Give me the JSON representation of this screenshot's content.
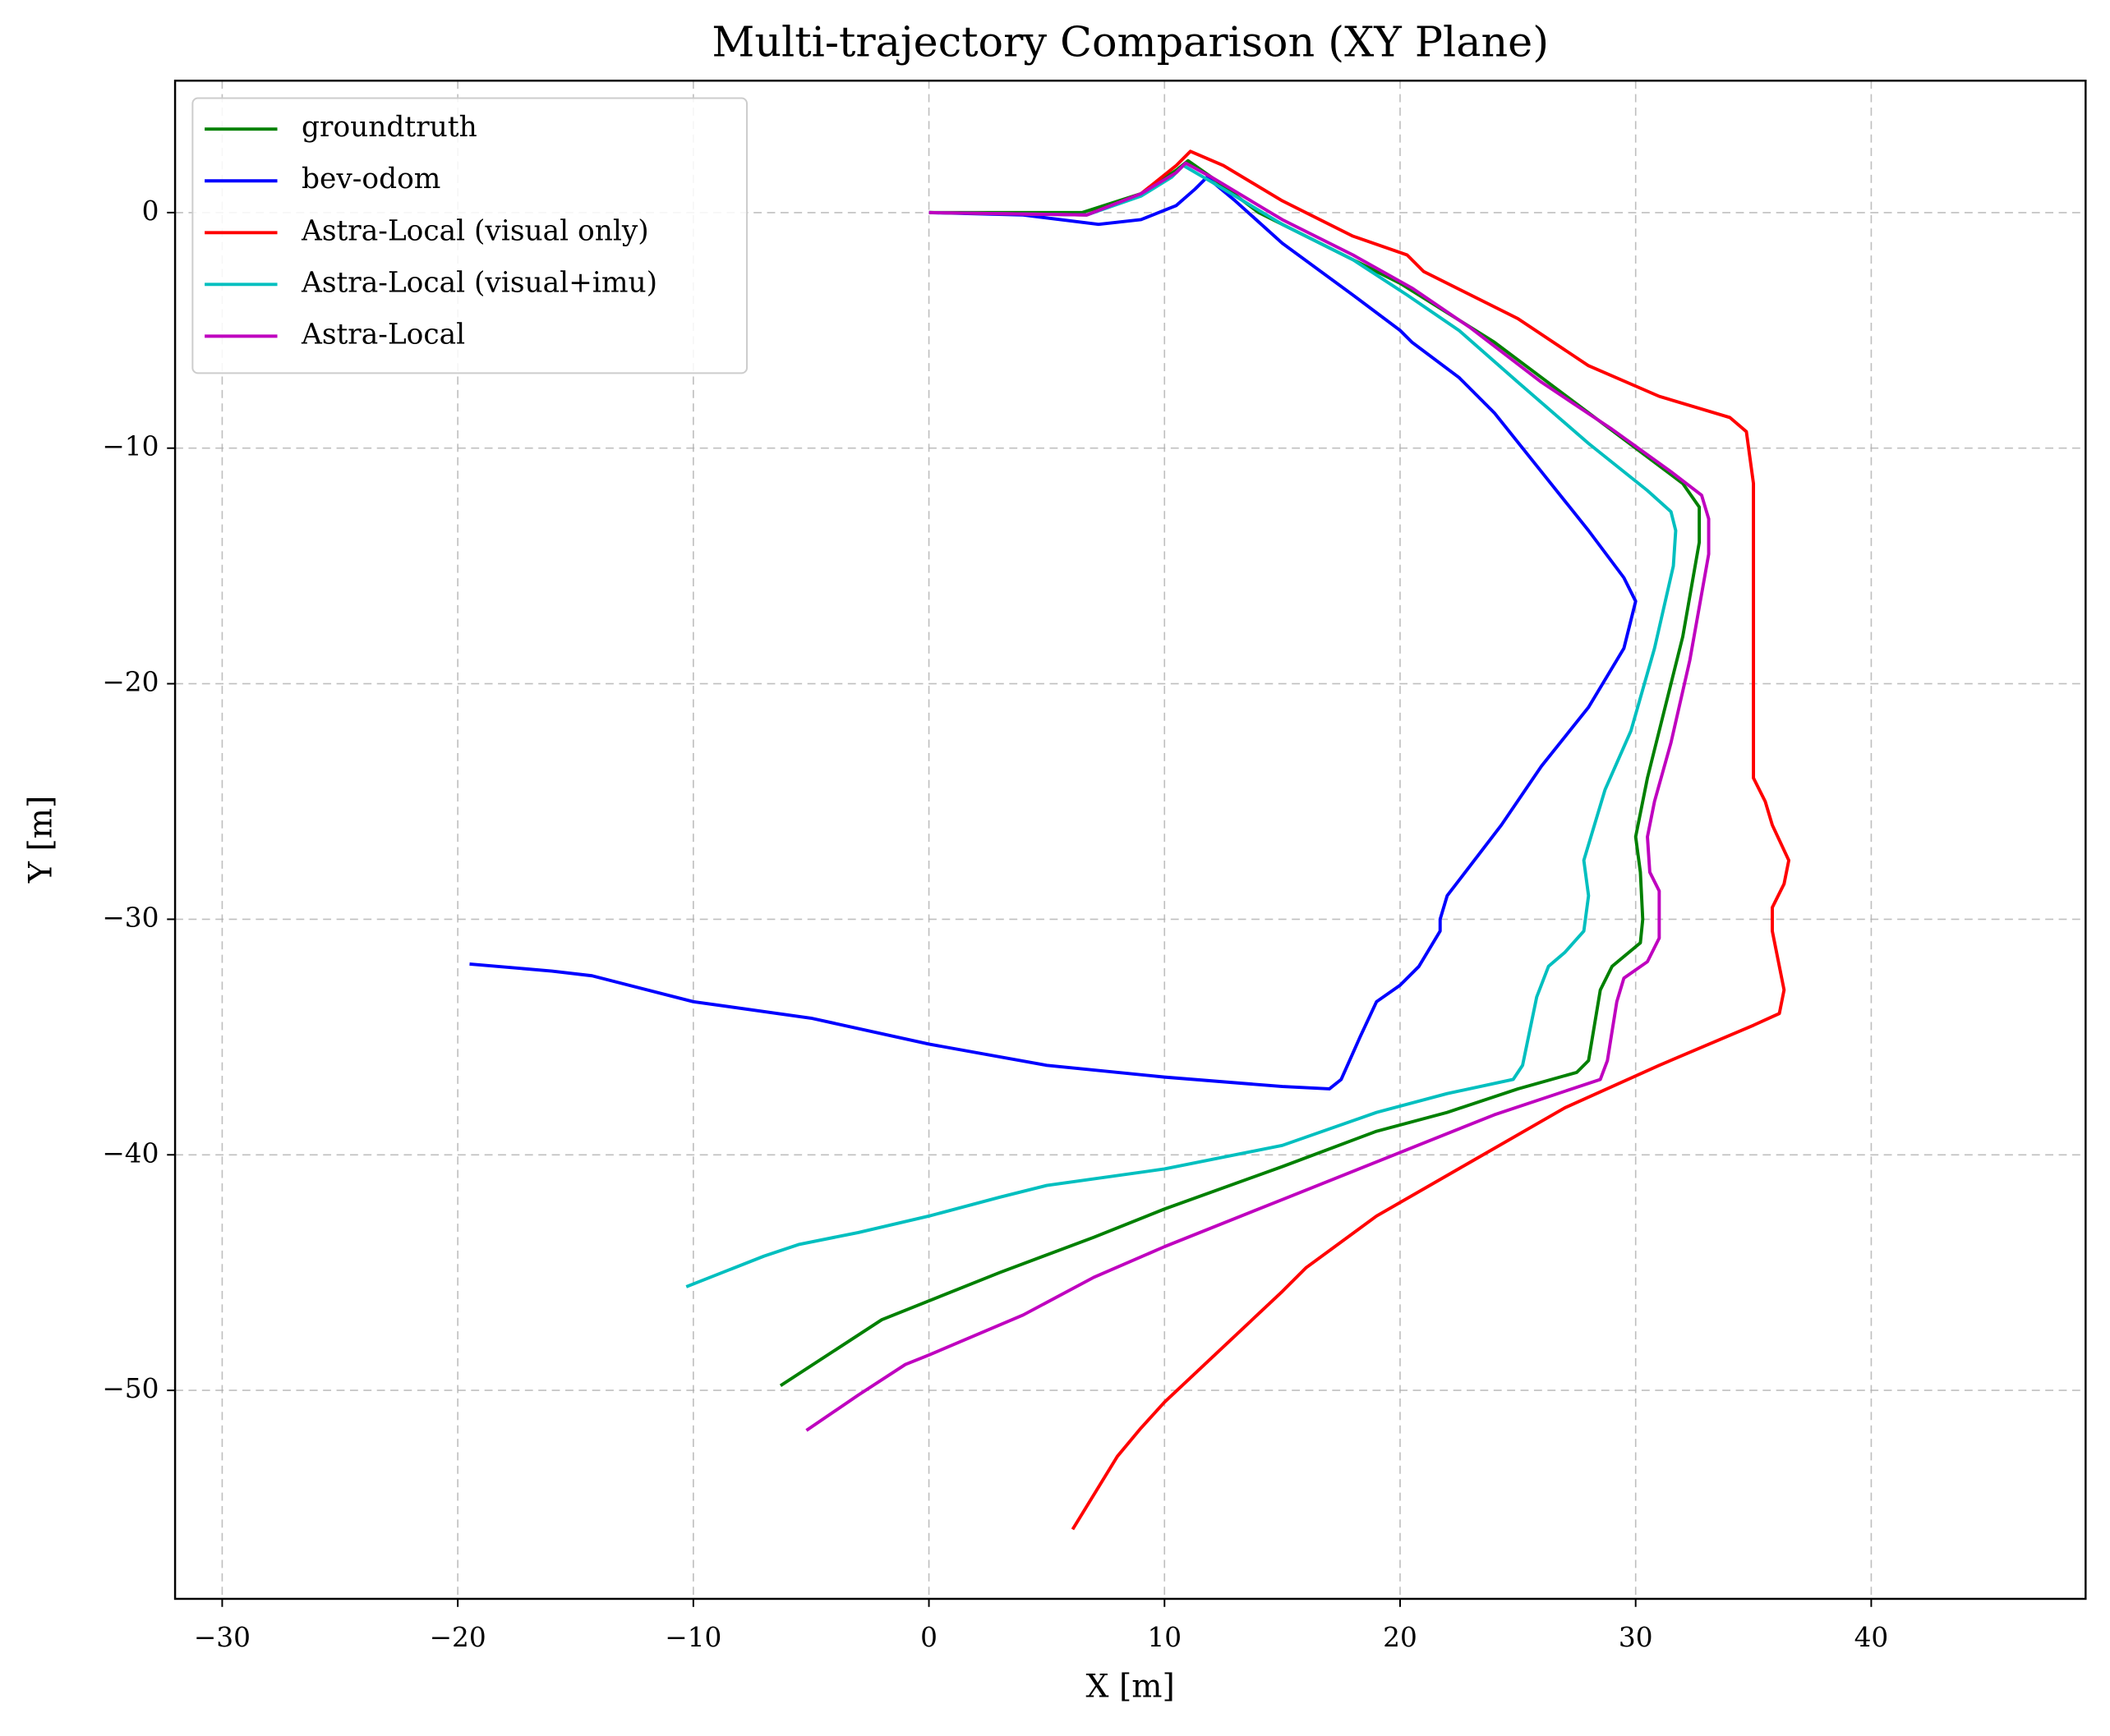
{
  "chart_data": {
    "type": "line",
    "title": "Multi-trajectory Comparison (XY Plane)",
    "x_label": "X [m]",
    "y_label": "Y [m]",
    "xlim": [
      -32,
      49.1
    ],
    "ylim": [
      -58.85,
      5.6
    ],
    "xticks": [
      {
        "value": -30,
        "label": "−30"
      },
      {
        "value": -20,
        "label": "−20"
      },
      {
        "value": -10,
        "label": "−10"
      },
      0,
      10,
      20,
      30,
      40
    ],
    "yticks": [
      {
        "value": -50,
        "label": "−50"
      },
      {
        "value": -40,
        "label": "−40"
      },
      {
        "value": -30,
        "label": "−30"
      },
      {
        "value": -20,
        "label": "−20"
      },
      {
        "value": -10,
        "label": "−10"
      },
      0
    ],
    "grid": true,
    "legend": "upper left",
    "series": [
      {
        "name": "groundtruth",
        "color": "#008000",
        "x": [
          0,
          6.5,
          9,
          10.5,
          11,
          12,
          14,
          17,
          20,
          24,
          28,
          32,
          32.7,
          32.7,
          32,
          31,
          30.5,
          30,
          30.2,
          30.3,
          30.2,
          29,
          28.5,
          28,
          27.5,
          25,
          22,
          19,
          15,
          10,
          7,
          3,
          -2,
          -6.3
        ],
        "values": [
          0,
          0,
          0.8,
          1.8,
          2.2,
          1.5,
          0,
          -1.5,
          -3,
          -5.5,
          -8.5,
          -11.5,
          -12.5,
          -14,
          -18,
          -22,
          -24,
          -26.5,
          -28,
          -30,
          -31,
          -32,
          -33,
          -36,
          -36.5,
          -37.2,
          -38.2,
          -39,
          -40.5,
          -42.3,
          -43.5,
          -45,
          -47,
          -49.8
        ]
      },
      {
        "name": "bev-odom",
        "color": "#0000ff",
        "x": [
          0,
          4,
          7.2,
          9,
          10.5,
          11.3,
          11.8,
          13,
          15,
          18,
          20,
          20.5,
          22.5,
          24,
          26,
          28,
          29.5,
          30,
          29.5,
          28,
          26,
          24.3,
          22,
          21.7,
          21.7,
          20.8,
          20,
          19,
          18.3,
          17.5,
          17,
          15,
          10,
          5,
          0,
          -5,
          -10,
          -14.3,
          -16,
          -19.5
        ],
        "values": [
          0,
          -0.1,
          -0.5,
          -0.3,
          0.3,
          1,
          1.5,
          0.5,
          -1.3,
          -3.5,
          -5,
          -5.5,
          -7,
          -8.5,
          -11,
          -13.5,
          -15.5,
          -16.5,
          -18.5,
          -21,
          -23.5,
          -26,
          -29,
          -30,
          -30.5,
          -32,
          -32.8,
          -33.5,
          -35,
          -36.8,
          -37.2,
          -37.1,
          -36.7,
          -36.2,
          -35.3,
          -34.2,
          -33.5,
          -32.4,
          -32.2,
          -31.9
        ]
      },
      {
        "name": "Astra-Local (visual only)",
        "color": "#ff0000",
        "x": [
          0,
          6.7,
          9,
          10.5,
          11.1,
          12.5,
          15,
          18,
          20.3,
          21,
          25,
          28,
          31,
          34,
          34.7,
          35,
          35,
          35,
          35.5,
          35.8,
          36.5,
          36.3,
          35.8,
          35.8,
          36.3,
          36.1,
          35,
          31,
          27,
          23,
          19,
          16,
          15,
          10,
          9,
          8,
          6.1
        ],
        "values": [
          0,
          -0.1,
          0.8,
          2,
          2.6,
          2,
          0.5,
          -1,
          -1.8,
          -2.5,
          -4.5,
          -6.5,
          -7.8,
          -8.7,
          -9.3,
          -11.5,
          -21,
          -24,
          -25,
          -26,
          -27.5,
          -28.5,
          -29.5,
          -30.5,
          -33,
          -34,
          -34.5,
          -36.2,
          -38,
          -40.3,
          -42.6,
          -44.8,
          -45.8,
          -50.5,
          -51.6,
          -52.8,
          -55.9
        ]
      },
      {
        "name": "Astra-Local (visual+imu)",
        "color": "#00bfbf",
        "x": [
          0,
          6.7,
          9,
          10.3,
          10.8,
          12,
          15,
          18,
          20.3,
          22.5,
          25,
          28,
          30.5,
          31.5,
          31.7,
          31.6,
          30.8,
          29.8,
          28.7,
          27.8,
          28,
          27.8,
          27,
          26.3,
          25.8,
          25.2,
          24.8,
          22,
          19,
          15,
          10,
          5,
          3,
          0,
          -3,
          -5.5,
          -7,
          -10.3
        ],
        "values": [
          0,
          -0.1,
          0.7,
          1.5,
          2,
          1.3,
          -0.5,
          -2,
          -3.5,
          -5,
          -7.2,
          -9.8,
          -11.8,
          -12.7,
          -13.5,
          -15,
          -18.5,
          -22,
          -24.5,
          -27.5,
          -29,
          -30.5,
          -31.4,
          -32,
          -33.3,
          -36.2,
          -36.8,
          -37.4,
          -38.2,
          -39.6,
          -40.6,
          -41.3,
          -41.8,
          -42.6,
          -43.3,
          -43.8,
          -44.3,
          -45.6
        ]
      },
      {
        "name": "Astra-Local",
        "color": "#bf00bf",
        "x": [
          0,
          6.7,
          9,
          10.5,
          10.9,
          12,
          15,
          18,
          20.5,
          23,
          26,
          29,
          31.5,
          32.8,
          33.1,
          33.1,
          32.3,
          31.5,
          30.8,
          30.5,
          30.6,
          31,
          31,
          30.5,
          29.5,
          29.2,
          28.8,
          28.5,
          27,
          24,
          20,
          15,
          10,
          7,
          4,
          0,
          -1,
          -3,
          -5.2
        ],
        "values": [
          0,
          -0.1,
          0.8,
          1.7,
          2.1,
          1.5,
          -0.3,
          -1.8,
          -3.2,
          -4.9,
          -7.2,
          -9.2,
          -11,
          -12,
          -13,
          -14.5,
          -19,
          -22.5,
          -25,
          -26.5,
          -28,
          -28.8,
          -30.8,
          -31.8,
          -32.5,
          -33.5,
          -36,
          -36.8,
          -37.3,
          -38.3,
          -39.9,
          -41.9,
          -43.9,
          -45.2,
          -46.8,
          -48.5,
          -48.9,
          -50.2,
          -51.7
        ]
      }
    ]
  }
}
